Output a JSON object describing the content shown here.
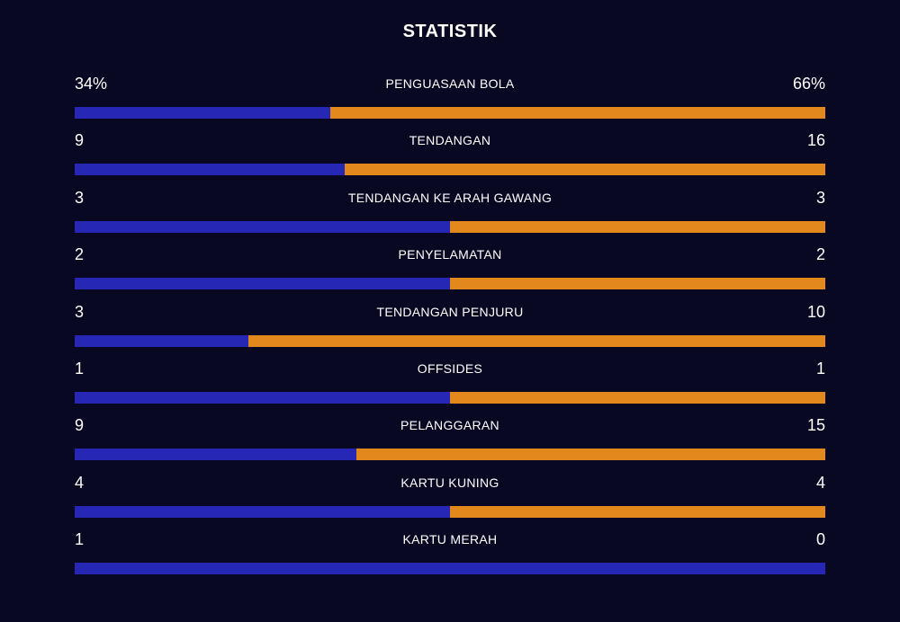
{
  "title": "STATISTIK",
  "colors": {
    "background": "#080823",
    "home": "#2727b5",
    "away": "#e2881d"
  },
  "stats": [
    {
      "label": "PENGUASAAN BOLA",
      "left": "34%",
      "right": "66%",
      "left_share": 0.34
    },
    {
      "label": "TENDANGAN",
      "left": "9",
      "right": "16",
      "left_share": 0.36
    },
    {
      "label": "TENDANGAN KE ARAH GAWANG",
      "left": "3",
      "right": "3",
      "left_share": 0.5
    },
    {
      "label": "PENYELAMATAN",
      "left": "2",
      "right": "2",
      "left_share": 0.5
    },
    {
      "label": "TENDANGAN PENJURU",
      "left": "3",
      "right": "10",
      "left_share": 0.231
    },
    {
      "label": "OFFSIDES",
      "left": "1",
      "right": "1",
      "left_share": 0.5
    },
    {
      "label": "PELANGGARAN",
      "left": "9",
      "right": "15",
      "left_share": 0.375
    },
    {
      "label": "KARTU KUNING",
      "left": "4",
      "right": "4",
      "left_share": 0.5
    },
    {
      "label": "KARTU MERAH",
      "left": "1",
      "right": "0",
      "left_share": 1.0
    }
  ]
}
